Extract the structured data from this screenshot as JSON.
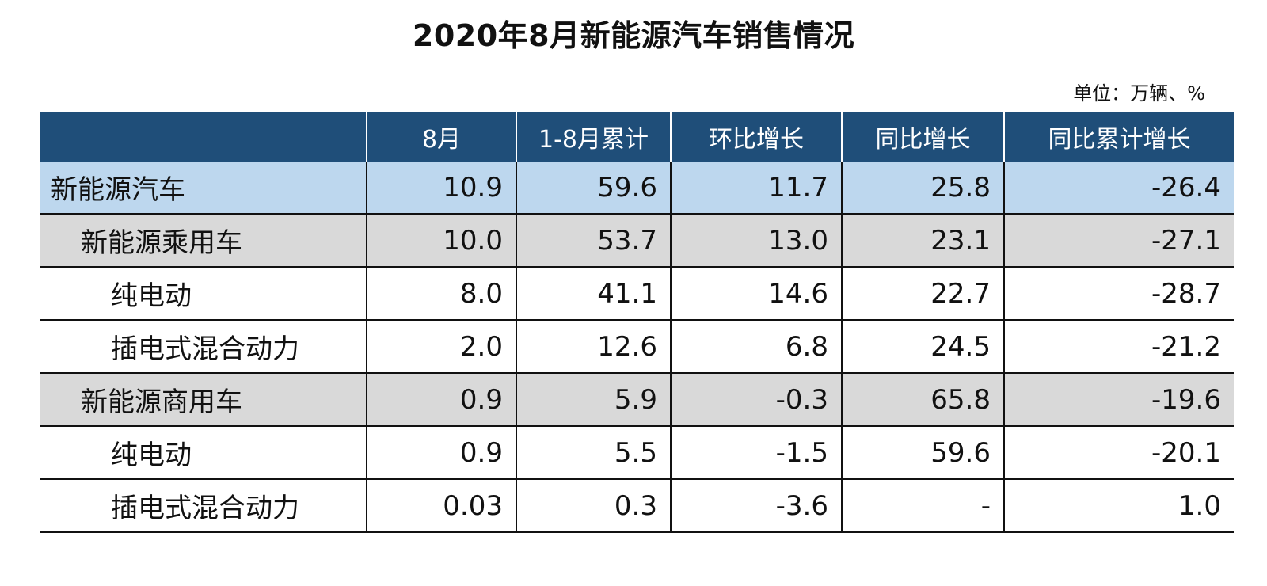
{
  "title": "2020年8月新能源汽车销售情况",
  "unit_note": "单位：万辆、%",
  "colors": {
    "header_bg": "#1f4e79",
    "header_text": "#ffffff",
    "row_blue": "#bdd7ee",
    "row_gray": "#d9d9d9",
    "row_white": "#ffffff"
  },
  "chart_data": {
    "type": "table",
    "title": "2020年8月新能源汽车销售情况",
    "unit": "单位：万辆、%",
    "columns": [
      "",
      "8月",
      "1-8月累计",
      "环比增长",
      "同比增长",
      "同比累计增长"
    ],
    "rows": [
      {
        "label": "新能源汽车",
        "level": 0,
        "shade": "blue",
        "values": [
          "10.9",
          "59.6",
          "11.7",
          "25.8",
          "-26.4"
        ]
      },
      {
        "label": "新能源乘用车",
        "level": 1,
        "shade": "gray",
        "values": [
          "10.0",
          "53.7",
          "13.0",
          "23.1",
          "-27.1"
        ]
      },
      {
        "label": "纯电动",
        "level": 2,
        "shade": "white",
        "values": [
          "8.0",
          "41.1",
          "14.6",
          "22.7",
          "-28.7"
        ]
      },
      {
        "label": "插电式混合动力",
        "level": 2,
        "shade": "white",
        "values": [
          "2.0",
          "12.6",
          "6.8",
          "24.5",
          "-21.2"
        ]
      },
      {
        "label": "新能源商用车",
        "level": 1,
        "shade": "gray",
        "values": [
          "0.9",
          "5.9",
          "-0.3",
          "65.8",
          "-19.6"
        ]
      },
      {
        "label": "纯电动",
        "level": 2,
        "shade": "white",
        "values": [
          "0.9",
          "5.5",
          "-1.5",
          "59.6",
          "-20.1"
        ]
      },
      {
        "label": "插电式混合动力",
        "level": 2,
        "shade": "white",
        "values": [
          "0.03",
          "0.3",
          "-3.6",
          "-",
          "1.0"
        ]
      }
    ]
  }
}
